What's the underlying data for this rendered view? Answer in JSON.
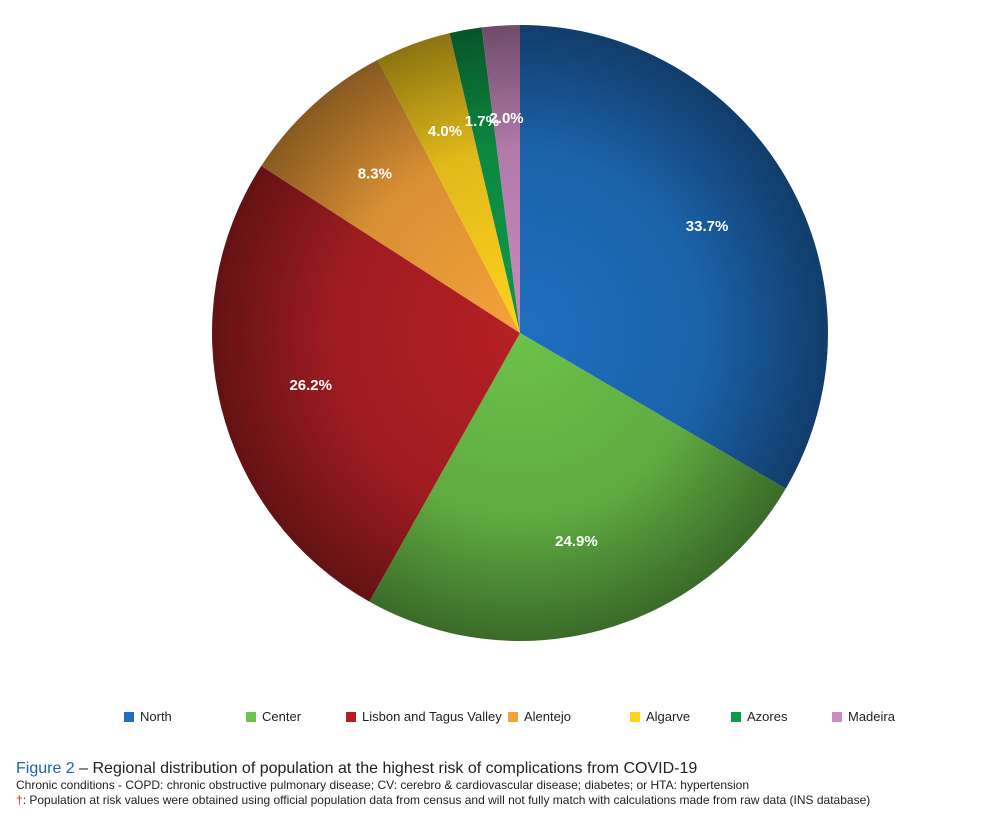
{
  "chart_data": {
    "type": "pie",
    "categories": [
      "North",
      "Center",
      "Lisbon and Tagus Valley",
      "Alentejo",
      "Algarve",
      "Azores",
      "Madeira"
    ],
    "values": [
      33.7,
      24.9,
      26.2,
      8.3,
      4.0,
      1.7,
      2.0
    ],
    "data_labels": [
      "33.7%",
      "24.9%",
      "26.2%",
      "8.3%",
      "4.0%",
      "1.7%",
      "2.0%"
    ],
    "colors": [
      "#1f6fc0",
      "#6cc24a",
      "#b52025",
      "#f5a23a",
      "#ffd21e",
      "#0f9a4a",
      "#c98bc0"
    ],
    "start_angle": "12 o'clock",
    "direction": "clockwise",
    "legend_position": "bottom",
    "title": ""
  },
  "caption": {
    "figure_label": "Figure 2",
    "title_text": " – Regional distribution of population at the highest risk of complications from COVID-19",
    "line1": "Chronic conditions - COPD: chronic obstructive pulmonary disease; CV: cerebro & cardiovascular disease; diabetes; or HTA: hypertension",
    "dagger": "†",
    "line2": ": Population at risk values were obtained using official population data from census and will not fully match with calculations made from raw data (INS database)"
  }
}
